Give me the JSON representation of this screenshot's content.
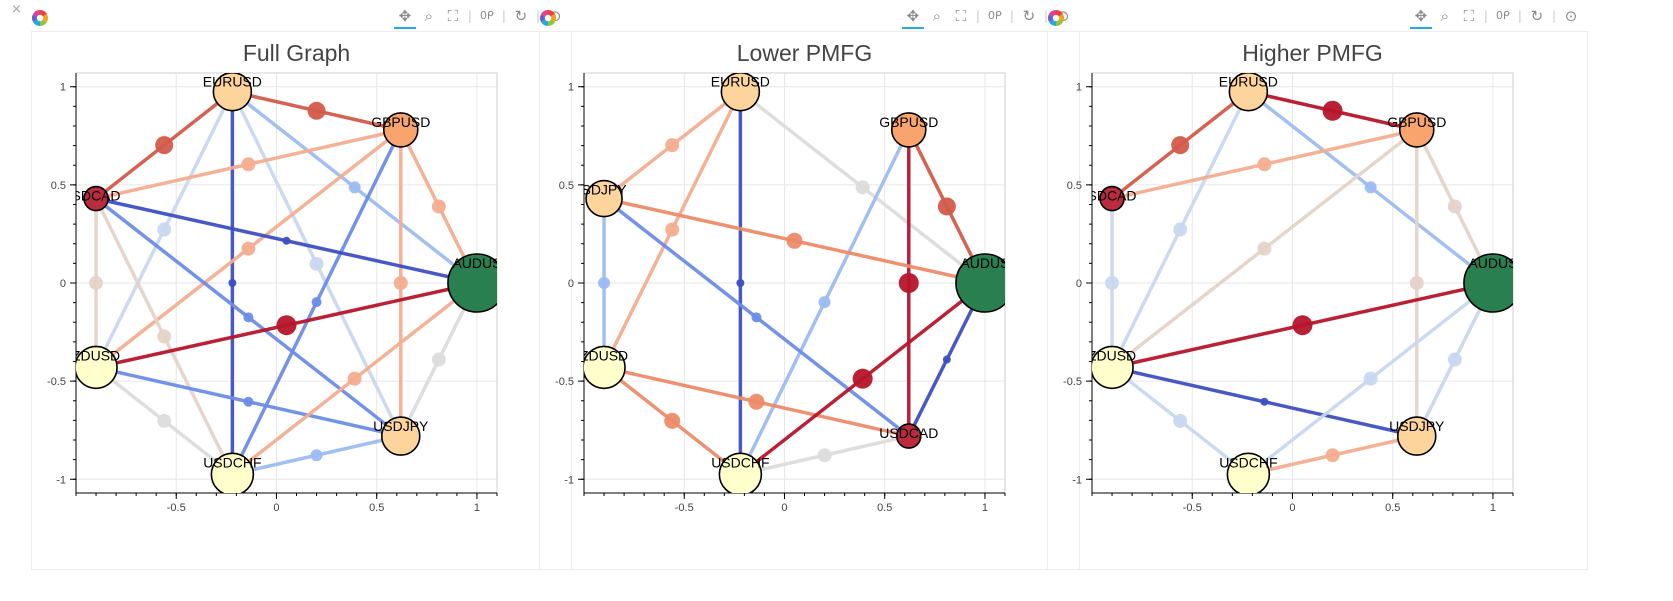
{
  "window": {
    "close_glyph": "×"
  },
  "toolbar": {
    "logo": "bokeh-logo-icon",
    "tools": [
      {
        "name": "pan-icon",
        "glyph": "✥",
        "active": true
      },
      {
        "name": "box-zoom-icon",
        "glyph": "⌕",
        "active": false
      },
      {
        "name": "reset-view-icon",
        "glyph": "⛶",
        "active": false
      },
      {
        "name": "wheel-zoom-icon",
        "glyph": "0ᑭ",
        "active": false
      },
      {
        "name": "refresh-icon",
        "glyph": "↻",
        "active": false
      },
      {
        "name": "hover-icon",
        "glyph": "⊙",
        "active": false
      }
    ]
  },
  "colors": {
    "edge_red_dark": "#b5152b",
    "edge_red": "#d35b4a",
    "edge_orange": "#ec8b68",
    "edge_salmon": "#f3ad8f",
    "edge_beige": "#e5d3c8",
    "edge_gray": "#dcdcdc",
    "edge_lightblue": "#c8d8ef",
    "edge_blue_light": "#9cbcf2",
    "edge_blue": "#6b8ce7",
    "edge_blue_dark": "#3e4fc1",
    "node_green": "#2a7f51",
    "node_darkred": "#ba2b40",
    "node_orange": "#f9a46d",
    "node_lightorange": "#fdd49c",
    "node_cream": "#ffffcc"
  },
  "chart_data": [
    {
      "type": "network",
      "title": "Full Graph",
      "xlim": [
        -1,
        1.1
      ],
      "ylim": [
        -1.07,
        1.07
      ],
      "xticks": [
        -0.5,
        0,
        0.5,
        1
      ],
      "yticks": [
        -1,
        -0.5,
        0,
        0.5,
        1
      ],
      "nodes": [
        {
          "label": "AUDUS",
          "x": 1.0,
          "y": 0.0,
          "size": 58,
          "color": "#2a7f51"
        },
        {
          "label": "GBPUSD",
          "x": 0.62,
          "y": 0.78,
          "size": 34,
          "color": "#f9a46d"
        },
        {
          "label": "EURUSD",
          "x": -0.22,
          "y": 0.975,
          "size": 38,
          "color": "#fdd49c"
        },
        {
          "label": "SDCAD",
          "x": -0.9,
          "y": 0.43,
          "size": 24,
          "color": "#ba2b40"
        },
        {
          "label": "ZDUSD",
          "x": -0.9,
          "y": -0.43,
          "size": 42,
          "color": "#ffffcc"
        },
        {
          "label": "USDCHF",
          "x": -0.22,
          "y": -0.975,
          "size": 42,
          "color": "#ffffcc"
        },
        {
          "label": "USDJPY",
          "x": 0.62,
          "y": -0.78,
          "size": 38,
          "color": "#fdd49c"
        }
      ],
      "edges": [
        {
          "source": "EURUSD",
          "target": "GBPUSD",
          "color": "#d35b4a",
          "mid": 18
        },
        {
          "source": "EURUSD",
          "target": "SDCAD",
          "color": "#d35b4a",
          "mid": 18
        },
        {
          "source": "EURUSD",
          "target": "USDCHF",
          "color": "#3e4fc1",
          "mid": 8
        },
        {
          "source": "EURUSD",
          "target": "AUDUS",
          "color": "#9cbcf2",
          "mid": 12
        },
        {
          "source": "EURUSD",
          "target": "USDJPY",
          "color": "#c8d8ef",
          "mid": 14
        },
        {
          "source": "EURUSD",
          "target": "ZDUSD",
          "color": "#c8d8ef",
          "mid": 14
        },
        {
          "source": "GBPUSD",
          "target": "SDCAD",
          "color": "#f3ad8f",
          "mid": 14
        },
        {
          "source": "GBPUSD",
          "target": "USDCHF",
          "color": "#6b8ce7",
          "mid": 10
        },
        {
          "source": "GBPUSD",
          "target": "AUDUS",
          "color": "#f3ad8f",
          "mid": 14
        },
        {
          "source": "GBPUSD",
          "target": "USDJPY",
          "color": "#f3ad8f",
          "mid": 14
        },
        {
          "source": "GBPUSD",
          "target": "ZDUSD",
          "color": "#f3ad8f",
          "mid": 14
        },
        {
          "source": "SDCAD",
          "target": "AUDUS",
          "color": "#3e4fc1",
          "mid": 8
        },
        {
          "source": "SDCAD",
          "target": "USDJPY",
          "color": "#6b8ce7",
          "mid": 10
        },
        {
          "source": "SDCAD",
          "target": "USDCHF",
          "color": "#e5d3c8",
          "mid": 14
        },
        {
          "source": "SDCAD",
          "target": "ZDUSD",
          "color": "#e5d3c8",
          "mid": 14
        },
        {
          "source": "ZDUSD",
          "target": "AUDUS",
          "color": "#b5152b",
          "mid": 20
        },
        {
          "source": "ZDUSD",
          "target": "USDJPY",
          "color": "#6b8ce7",
          "mid": 10
        },
        {
          "source": "ZDUSD",
          "target": "USDCHF",
          "color": "#dcdcdc",
          "mid": 14
        },
        {
          "source": "USDCHF",
          "target": "USDJPY",
          "color": "#9cbcf2",
          "mid": 12
        },
        {
          "source": "USDCHF",
          "target": "AUDUS",
          "color": "#f3ad8f",
          "mid": 14
        },
        {
          "source": "USDJPY",
          "target": "AUDUS",
          "color": "#dcdcdc",
          "mid": 14
        }
      ]
    },
    {
      "type": "network",
      "title": "Lower PMFG",
      "xlim": [
        -1,
        1.1
      ],
      "ylim": [
        -1.07,
        1.07
      ],
      "xticks": [
        -0.5,
        0,
        0.5,
        1
      ],
      "yticks": [
        -1,
        -0.5,
        0,
        0.5,
        1
      ],
      "nodes": [
        {
          "label": "AUDUS",
          "x": 1.0,
          "y": 0.0,
          "size": 58,
          "color": "#2a7f51"
        },
        {
          "label": "GBPUSD",
          "x": 0.62,
          "y": 0.78,
          "size": 34,
          "color": "#f9a46d"
        },
        {
          "label": "EURUSD",
          "x": -0.22,
          "y": 0.975,
          "size": 38,
          "color": "#fdd49c"
        },
        {
          "label": "SDJPY",
          "x": -0.9,
          "y": 0.43,
          "size": 36,
          "color": "#fdd49c"
        },
        {
          "label": "ZDUSD",
          "x": -0.9,
          "y": -0.43,
          "size": 42,
          "color": "#ffffcc"
        },
        {
          "label": "USDCHF",
          "x": -0.22,
          "y": -0.975,
          "size": 42,
          "color": "#ffffcc"
        },
        {
          "label": "USDCAD",
          "x": 0.62,
          "y": -0.78,
          "size": 24,
          "color": "#ba2b40"
        }
      ],
      "edges": [
        {
          "source": "EURUSD",
          "target": "SDJPY",
          "color": "#f3ad8f",
          "mid": 14
        },
        {
          "source": "EURUSD",
          "target": "ZDUSD",
          "color": "#f3ad8f",
          "mid": 14
        },
        {
          "source": "EURUSD",
          "target": "USDCHF",
          "color": "#3e4fc1",
          "mid": 8
        },
        {
          "source": "EURUSD",
          "target": "AUDUS",
          "color": "#dcdcdc",
          "mid": 14
        },
        {
          "source": "GBPUSD",
          "target": "AUDUS",
          "color": "#d35b4a",
          "mid": 18
        },
        {
          "source": "GBPUSD",
          "target": "USDCAD",
          "color": "#b5152b",
          "mid": 20
        },
        {
          "source": "GBPUSD",
          "target": "USDCHF",
          "color": "#9cbcf2",
          "mid": 12
        },
        {
          "source": "SDJPY",
          "target": "AUDUS",
          "color": "#ec8b68",
          "mid": 16
        },
        {
          "source": "SDJPY",
          "target": "USDCAD",
          "color": "#6b8ce7",
          "mid": 10
        },
        {
          "source": "SDJPY",
          "target": "ZDUSD",
          "color": "#9cbcf2",
          "mid": 12
        },
        {
          "source": "ZDUSD",
          "target": "USDCHF",
          "color": "#ec8b68",
          "mid": 16
        },
        {
          "source": "ZDUSD",
          "target": "USDCAD",
          "color": "#ec8b68",
          "mid": 16
        },
        {
          "source": "USDCHF",
          "target": "AUDUS",
          "color": "#b5152b",
          "mid": 20
        },
        {
          "source": "USDCHF",
          "target": "USDCAD",
          "color": "#dcdcdc",
          "mid": 14
        },
        {
          "source": "USDCAD",
          "target": "AUDUS",
          "color": "#3e4fc1",
          "mid": 8
        }
      ]
    },
    {
      "type": "network",
      "title": "Higher PMFG",
      "xlim": [
        -1,
        1.1
      ],
      "ylim": [
        -1.07,
        1.07
      ],
      "xticks": [
        -0.5,
        0,
        0.5,
        1
      ],
      "yticks": [
        -1,
        -0.5,
        0,
        0.5,
        1
      ],
      "nodes": [
        {
          "label": "AUDUS",
          "x": 1.0,
          "y": 0.0,
          "size": 58,
          "color": "#2a7f51"
        },
        {
          "label": "GBPUSD",
          "x": 0.62,
          "y": 0.78,
          "size": 34,
          "color": "#f9a46d"
        },
        {
          "label": "EURUSD",
          "x": -0.22,
          "y": 0.975,
          "size": 38,
          "color": "#fdd49c"
        },
        {
          "label": "SDCAD",
          "x": -0.9,
          "y": 0.43,
          "size": 24,
          "color": "#ba2b40"
        },
        {
          "label": "ZDUSD",
          "x": -0.9,
          "y": -0.43,
          "size": 42,
          "color": "#ffffcc"
        },
        {
          "label": "USDCHF",
          "x": -0.22,
          "y": -0.975,
          "size": 42,
          "color": "#ffffcc"
        },
        {
          "label": "USDJPY",
          "x": 0.62,
          "y": -0.78,
          "size": 38,
          "color": "#fdd49c"
        }
      ],
      "edges": [
        {
          "source": "EURUSD",
          "target": "GBPUSD",
          "color": "#b5152b",
          "mid": 20
        },
        {
          "source": "EURUSD",
          "target": "SDCAD",
          "color": "#d35b4a",
          "mid": 18
        },
        {
          "source": "EURUSD",
          "target": "AUDUS",
          "color": "#9cbcf2",
          "mid": 12
        },
        {
          "source": "EURUSD",
          "target": "ZDUSD",
          "color": "#c8d8ef",
          "mid": 14
        },
        {
          "source": "GBPUSD",
          "target": "SDCAD",
          "color": "#f3ad8f",
          "mid": 14
        },
        {
          "source": "GBPUSD",
          "target": "USDJPY",
          "color": "#e5d3c8",
          "mid": 14
        },
        {
          "source": "GBPUSD",
          "target": "AUDUS",
          "color": "#e5d3c8",
          "mid": 14
        },
        {
          "source": "GBPUSD",
          "target": "ZDUSD",
          "color": "#e5d3c8",
          "mid": 14
        },
        {
          "source": "SDCAD",
          "target": "ZDUSD",
          "color": "#c8d8ef",
          "mid": 14
        },
        {
          "source": "ZDUSD",
          "target": "AUDUS",
          "color": "#b5152b",
          "mid": 20
        },
        {
          "source": "ZDUSD",
          "target": "USDJPY",
          "color": "#3e4fc1",
          "mid": 8
        },
        {
          "source": "ZDUSD",
          "target": "USDCHF",
          "color": "#c8d8ef",
          "mid": 14
        },
        {
          "source": "USDCHF",
          "target": "USDJPY",
          "color": "#f3ad8f",
          "mid": 14
        },
        {
          "source": "USDCHF",
          "target": "AUDUS",
          "color": "#c8d8ef",
          "mid": 14
        },
        {
          "source": "USDJPY",
          "target": "AUDUS",
          "color": "#c8d8ef",
          "mid": 14
        }
      ]
    }
  ]
}
